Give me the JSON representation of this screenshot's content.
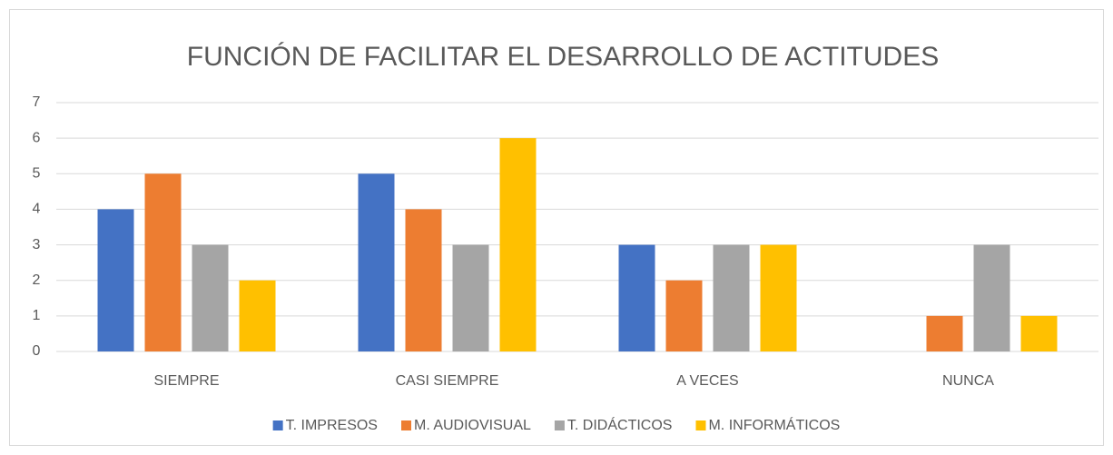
{
  "chart_data": {
    "type": "bar",
    "title": "FUNCIÓN DE FACILITAR EL DESARROLLO DE ACTITUDES",
    "categories": [
      "SIEMPRE",
      "CASI SIEMPRE",
      "A VECES",
      "NUNCA"
    ],
    "series": [
      {
        "name": "T. IMPRESOS",
        "color": "#4472c4",
        "values": [
          4,
          5,
          3,
          0
        ]
      },
      {
        "name": "M. AUDIOVISUAL",
        "color": "#ed7d31",
        "values": [
          5,
          4,
          2,
          1
        ]
      },
      {
        "name": "T. DIDÁCTICOS",
        "color": "#a5a5a5",
        "values": [
          3,
          3,
          3,
          3
        ]
      },
      {
        "name": "M. INFORMÁTICOS",
        "color": "#ffc000",
        "values": [
          2,
          6,
          3,
          1
        ]
      }
    ],
    "ylim": [
      0,
      7
    ],
    "yticks": [
      0,
      1,
      2,
      3,
      4,
      5,
      6,
      7
    ],
    "grid": true,
    "legend": "bottom"
  }
}
